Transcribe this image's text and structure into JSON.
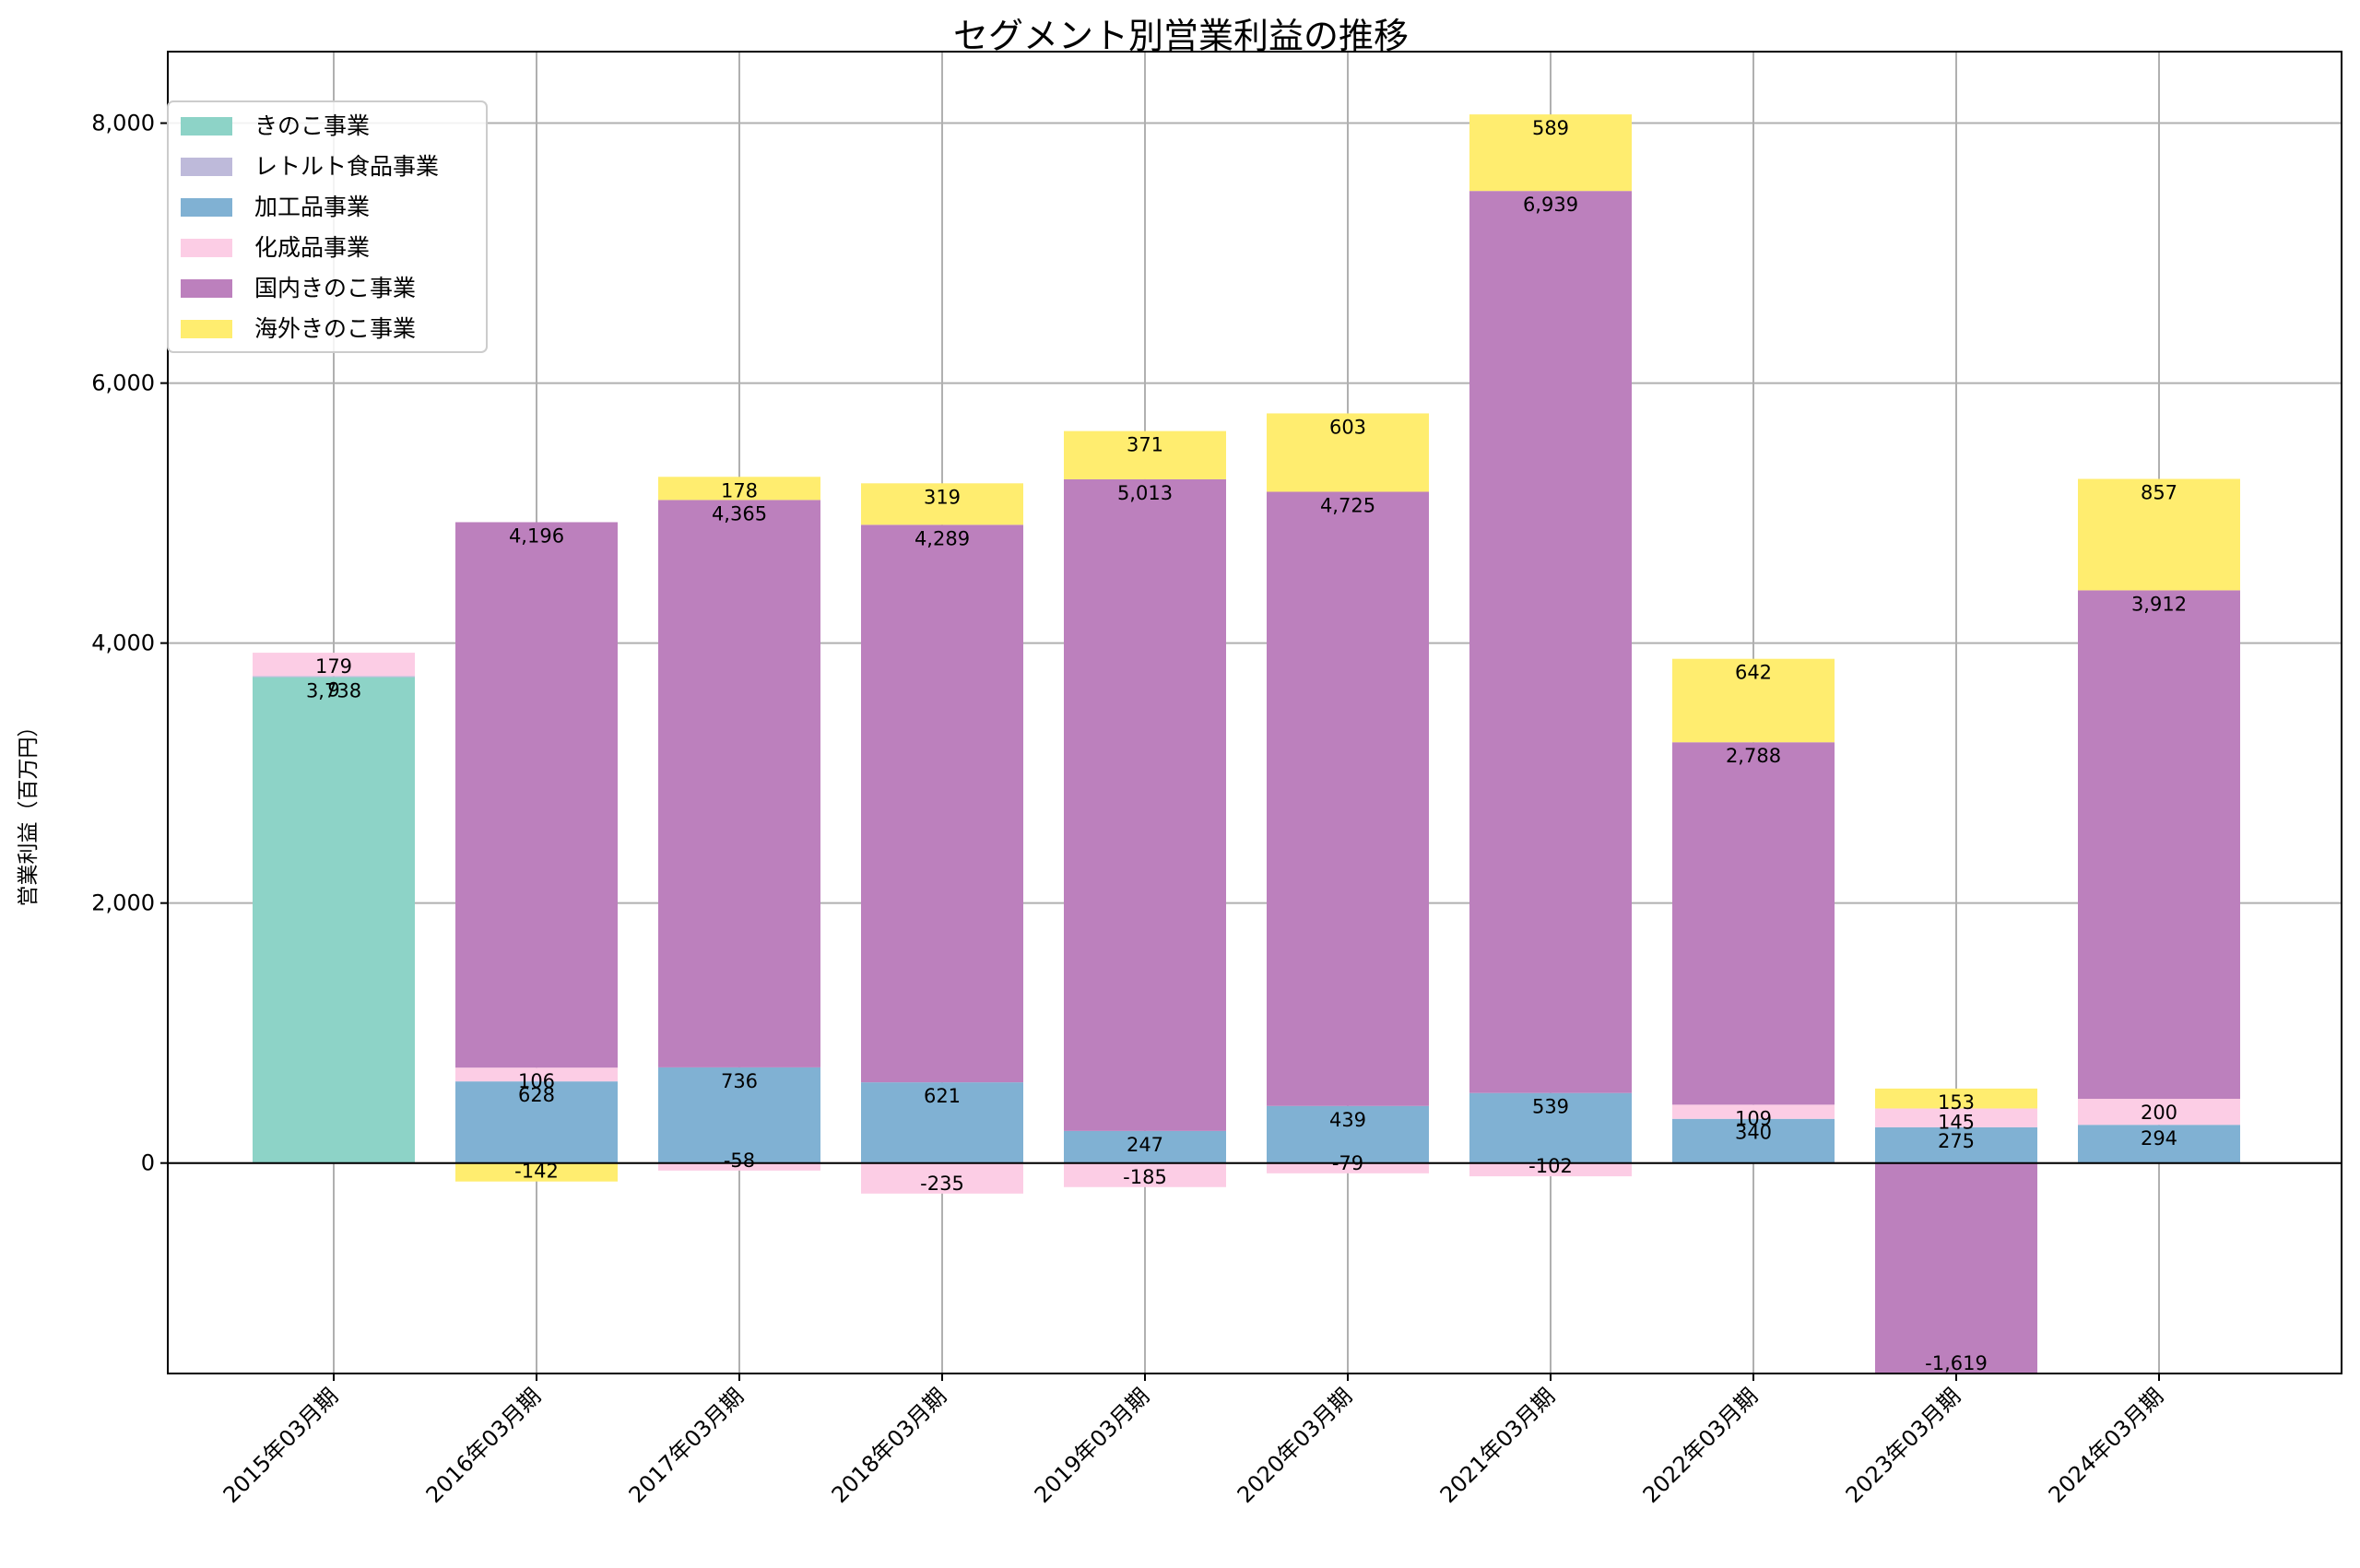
{
  "chart_data": {
    "type": "bar",
    "stacked": true,
    "title": "セグメント別営業利益の推移",
    "xlabel": "",
    "ylabel": "営業利益（百万円）",
    "ylim": [
      -1619,
      8550
    ],
    "yticks": [
      0,
      2000,
      4000,
      6000,
      8000
    ],
    "ytick_labels": [
      "0",
      "2,000",
      "4,000",
      "6,000",
      "8,000"
    ],
    "grid": true,
    "legend_position": "top-left",
    "categories": [
      "2015年03月期",
      "2016年03月期",
      "2017年03月期",
      "2018年03月期",
      "2019年03月期",
      "2020年03月期",
      "2021年03月期",
      "2022年03月期",
      "2023年03月期",
      "2024年03月期"
    ],
    "series": [
      {
        "name": "きのこ事業",
        "color": "#8dd3c7",
        "values": [
          3738,
          null,
          null,
          null,
          null,
          null,
          null,
          null,
          null,
          null
        ]
      },
      {
        "name": "レトルト食品事業",
        "color": "#bebada",
        "values": [
          9,
          null,
          null,
          null,
          null,
          null,
          null,
          null,
          null,
          null
        ]
      },
      {
        "name": "加工品事業",
        "color": "#80b1d3",
        "values": [
          null,
          628,
          736,
          621,
          247,
          439,
          539,
          340,
          275,
          294
        ]
      },
      {
        "name": "化成品事業",
        "color": "#fccde5",
        "values": [
          179,
          106,
          -58,
          -235,
          -185,
          -79,
          -102,
          109,
          145,
          200
        ]
      },
      {
        "name": "国内きのこ事業",
        "color": "#bc80bd",
        "values": [
          null,
          4196,
          4365,
          4289,
          5013,
          4725,
          6939,
          2788,
          -1619,
          3912
        ]
      },
      {
        "name": "海外きのこ事業",
        "color": "#ffed6f",
        "values": [
          null,
          -142,
          178,
          319,
          371,
          603,
          589,
          642,
          153,
          857
        ]
      }
    ]
  }
}
